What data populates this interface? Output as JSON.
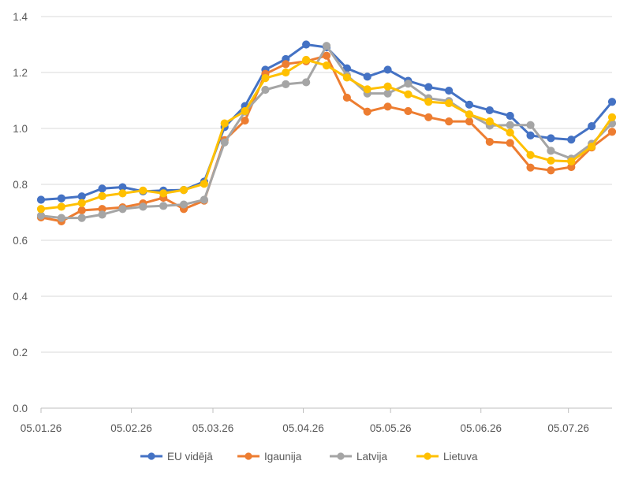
{
  "chart_data": {
    "type": "line",
    "title": "",
    "xlabel": "",
    "ylabel": "",
    "ylim": [
      0,
      1.4
    ],
    "y_ticks": [
      0,
      0.2,
      0.4,
      0.6,
      0.8,
      1.0,
      1.2,
      1.4
    ],
    "y_tick_labels": [
      "0.0",
      "0.2",
      "0.4",
      "0.6",
      "0.8",
      "1.0",
      "1.2",
      "1.4"
    ],
    "x_tick_labels": [
      "05.01.26",
      "05.02.26",
      "05.03.26",
      "05.04.26",
      "05.05.26",
      "05.06.26",
      "05.07.26"
    ],
    "x_tick_positions": [
      0,
      4.43,
      8.43,
      12.86,
      17.14,
      21.57,
      25.86
    ],
    "grid": true,
    "legend_position": "bottom",
    "series": [
      {
        "name": "EU vidējā",
        "color": "#4472C4",
        "values": [
          0.745,
          0.75,
          0.757,
          0.785,
          0.79,
          0.775,
          0.778,
          0.78,
          0.81,
          1.005,
          1.08,
          1.21,
          1.248,
          1.3,
          1.29,
          1.215,
          1.185,
          1.21,
          1.17,
          1.148,
          1.135,
          1.085,
          1.065,
          1.045,
          0.975,
          0.965,
          0.96,
          1.008,
          1.095
        ]
      },
      {
        "name": "Igaunija",
        "color": "#ED7D31",
        "values": [
          0.682,
          0.668,
          0.707,
          0.712,
          0.718,
          0.732,
          0.752,
          0.712,
          0.742,
          0.958,
          1.028,
          1.195,
          1.23,
          1.24,
          1.26,
          1.11,
          1.06,
          1.078,
          1.062,
          1.04,
          1.025,
          1.025,
          0.952,
          0.948,
          0.86,
          0.85,
          0.862,
          0.932,
          0.988
        ]
      },
      {
        "name": "Latvija",
        "color": "#A5A5A5",
        "values": [
          0.688,
          0.68,
          0.68,
          0.692,
          0.712,
          0.72,
          0.723,
          0.728,
          0.745,
          0.95,
          1.06,
          1.138,
          1.158,
          1.165,
          1.295,
          1.19,
          1.125,
          1.125,
          1.16,
          1.108,
          1.098,
          1.05,
          1.01,
          1.012,
          1.012,
          0.92,
          0.892,
          0.945,
          1.018
        ]
      },
      {
        "name": "Lietuva",
        "color": "#FFC000",
        "values": [
          0.712,
          0.72,
          0.733,
          0.758,
          0.768,
          0.778,
          0.768,
          0.78,
          0.802,
          1.018,
          1.062,
          1.18,
          1.2,
          1.245,
          1.225,
          1.182,
          1.14,
          1.15,
          1.122,
          1.095,
          1.09,
          1.05,
          1.025,
          0.985,
          0.905,
          0.885,
          0.882,
          0.935,
          1.04
        ]
      }
    ]
  }
}
